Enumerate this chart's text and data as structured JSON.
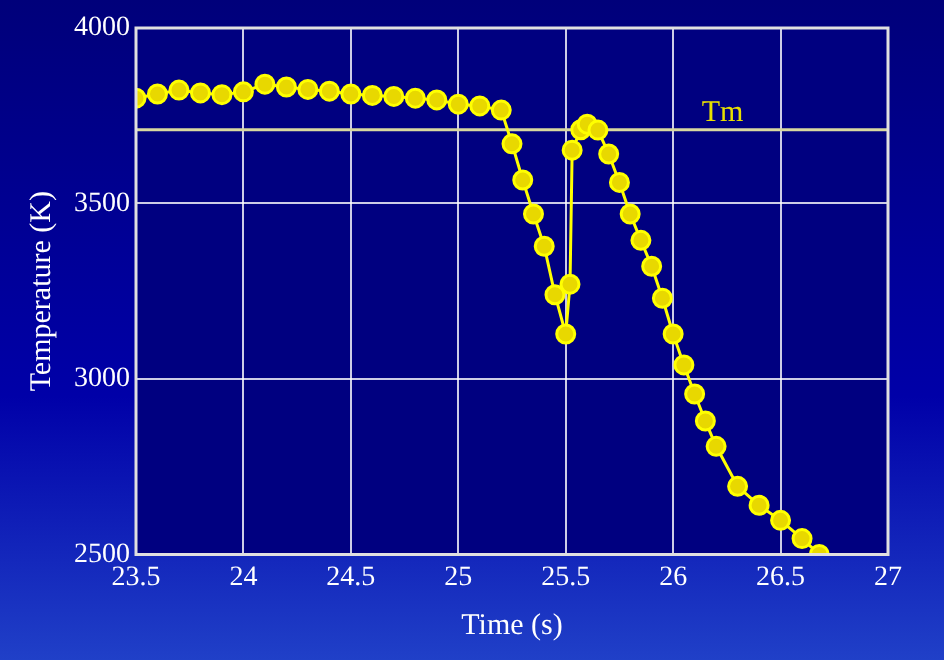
{
  "chart_data": {
    "type": "line",
    "xlabel": "Time (s)",
    "ylabel": "Temperature (K)",
    "x": [
      23.5,
      23.6,
      23.7,
      23.8,
      23.9,
      24.0,
      24.1,
      24.2,
      24.3,
      24.4,
      24.5,
      24.6,
      24.7,
      24.8,
      24.9,
      25.0,
      25.1,
      25.2,
      25.25,
      25.3,
      25.35,
      25.4,
      25.45,
      25.5,
      25.52,
      25.53,
      25.57,
      25.6,
      25.65,
      25.7,
      25.75,
      25.8,
      25.85,
      25.9,
      25.95,
      26.0,
      26.05,
      26.1,
      26.15,
      26.2,
      26.3,
      26.4,
      26.5,
      26.6,
      26.68
    ],
    "series": [
      {
        "color": "#ffff00",
        "values": [
          3800,
          3812,
          3823,
          3815,
          3810,
          3818,
          3840,
          3832,
          3825,
          3820,
          3812,
          3808,
          3805,
          3800,
          3795,
          3783,
          3778,
          3766,
          3670,
          3567,
          3470,
          3378,
          3240,
          3128,
          3270,
          3652,
          3710,
          3726,
          3709,
          3641,
          3560,
          3470,
          3395,
          3321,
          3230,
          3128,
          3040,
          2957,
          2880,
          2808,
          2694,
          2640,
          2597,
          2545,
          2500
        ]
      }
    ],
    "xlim": [
      23.5,
      27
    ],
    "xticks": [
      23.5,
      24,
      24.5,
      25,
      25.5,
      26,
      26.5,
      27
    ],
    "ylim": [
      2500,
      4000
    ],
    "yticks": [
      2500,
      3000,
      3500,
      4000
    ],
    "grid": true,
    "marker": "circle",
    "line_style": "solid",
    "ref_lines": [
      {
        "axis": "y",
        "value": 3710,
        "label": "Tm",
        "color": "#d8d8a0"
      }
    ]
  }
}
